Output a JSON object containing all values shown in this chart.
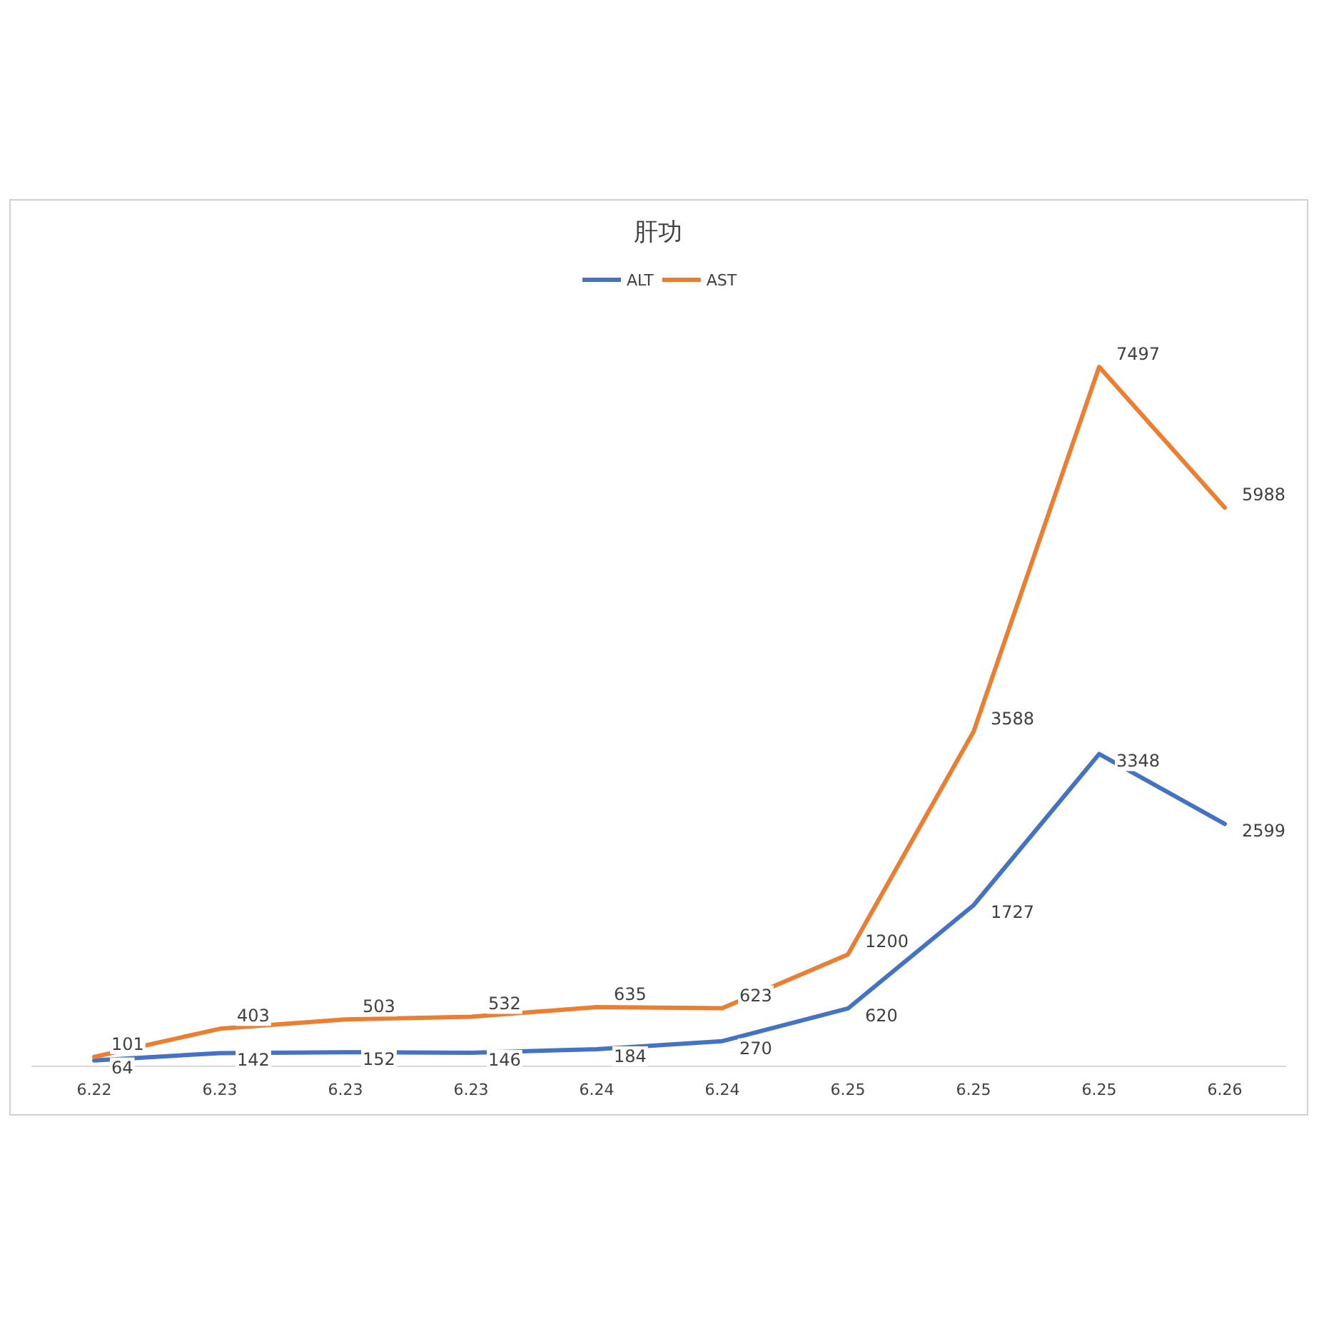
{
  "chart_data": {
    "type": "line",
    "title": "肝功",
    "categories": [
      "6.22",
      "6.23",
      "6.23",
      "6.23",
      "6.24",
      "6.24",
      "6.25",
      "6.25",
      "6.25",
      "6.26"
    ],
    "series": [
      {
        "name": "ALT",
        "color": "#4472c4",
        "values": [
          64,
          142,
          152,
          146,
          184,
          270,
          620,
          1727,
          3348,
          2599
        ]
      },
      {
        "name": "AST",
        "color": "#ed7d31",
        "values": [
          101,
          403,
          503,
          532,
          635,
          623,
          1200,
          3588,
          7497,
          5988
        ]
      }
    ],
    "data_labels": true,
    "legend": "top",
    "marker": "none",
    "line_style": "solid"
  }
}
